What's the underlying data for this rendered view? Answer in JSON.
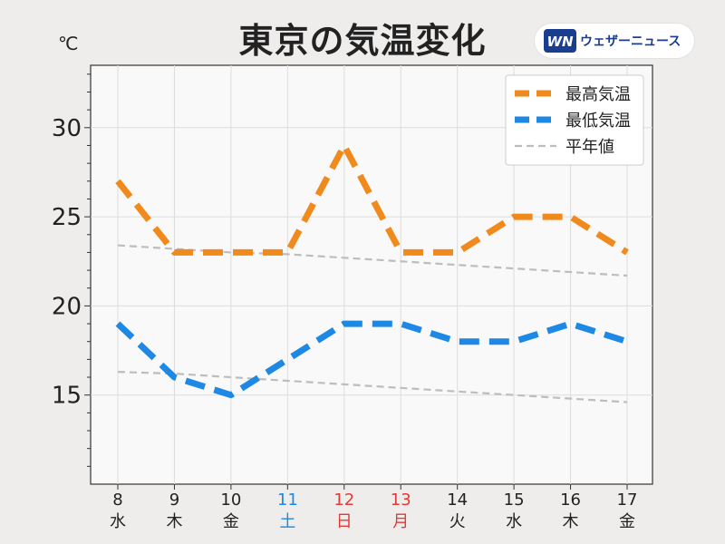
{
  "title": "東京の気温変化",
  "unit_label": "℃",
  "brand": {
    "name": "ウェザーニュース",
    "logo_text": "WN",
    "logo_color": "#1a3d8f"
  },
  "chart_data": {
    "type": "line",
    "categories": [
      "8",
      "9",
      "10",
      "11",
      "12",
      "13",
      "14",
      "15",
      "16",
      "17"
    ],
    "weekdays": [
      "水",
      "木",
      "金",
      "土",
      "日",
      "月",
      "火",
      "水",
      "木",
      "金"
    ],
    "category_colors": [
      "#222222",
      "#222222",
      "#222222",
      "#1e88e5",
      "#e53935",
      "#e53935",
      "#222222",
      "#222222",
      "#222222",
      "#222222"
    ],
    "yticks": [
      15,
      20,
      25,
      30
    ],
    "ylim": [
      10,
      33.5
    ],
    "grid": true,
    "legend_position": "top-right",
    "series": [
      {
        "name": "最高気温",
        "color": "#f08a1c",
        "style": "thick-dash",
        "values": [
          27,
          23,
          23,
          23,
          29,
          23,
          23,
          25,
          25,
          23
        ]
      },
      {
        "name": "最低気温",
        "color": "#1e88e5",
        "style": "thick-dash",
        "values": [
          19,
          16,
          15,
          17,
          19,
          19,
          18,
          18,
          19,
          18
        ]
      },
      {
        "name": "平年値",
        "color": "#bdbdbd",
        "style": "thin-dash",
        "values": [
          23.4,
          23.2,
          23.0,
          22.9,
          22.7,
          22.5,
          22.3,
          22.1,
          21.9,
          21.7
        ]
      },
      {
        "name": "",
        "color": "#bdbdbd",
        "style": "thin-dash",
        "values": [
          16.3,
          16.2,
          16.0,
          15.8,
          15.6,
          15.4,
          15.2,
          15.0,
          14.8,
          14.6
        ]
      }
    ]
  }
}
